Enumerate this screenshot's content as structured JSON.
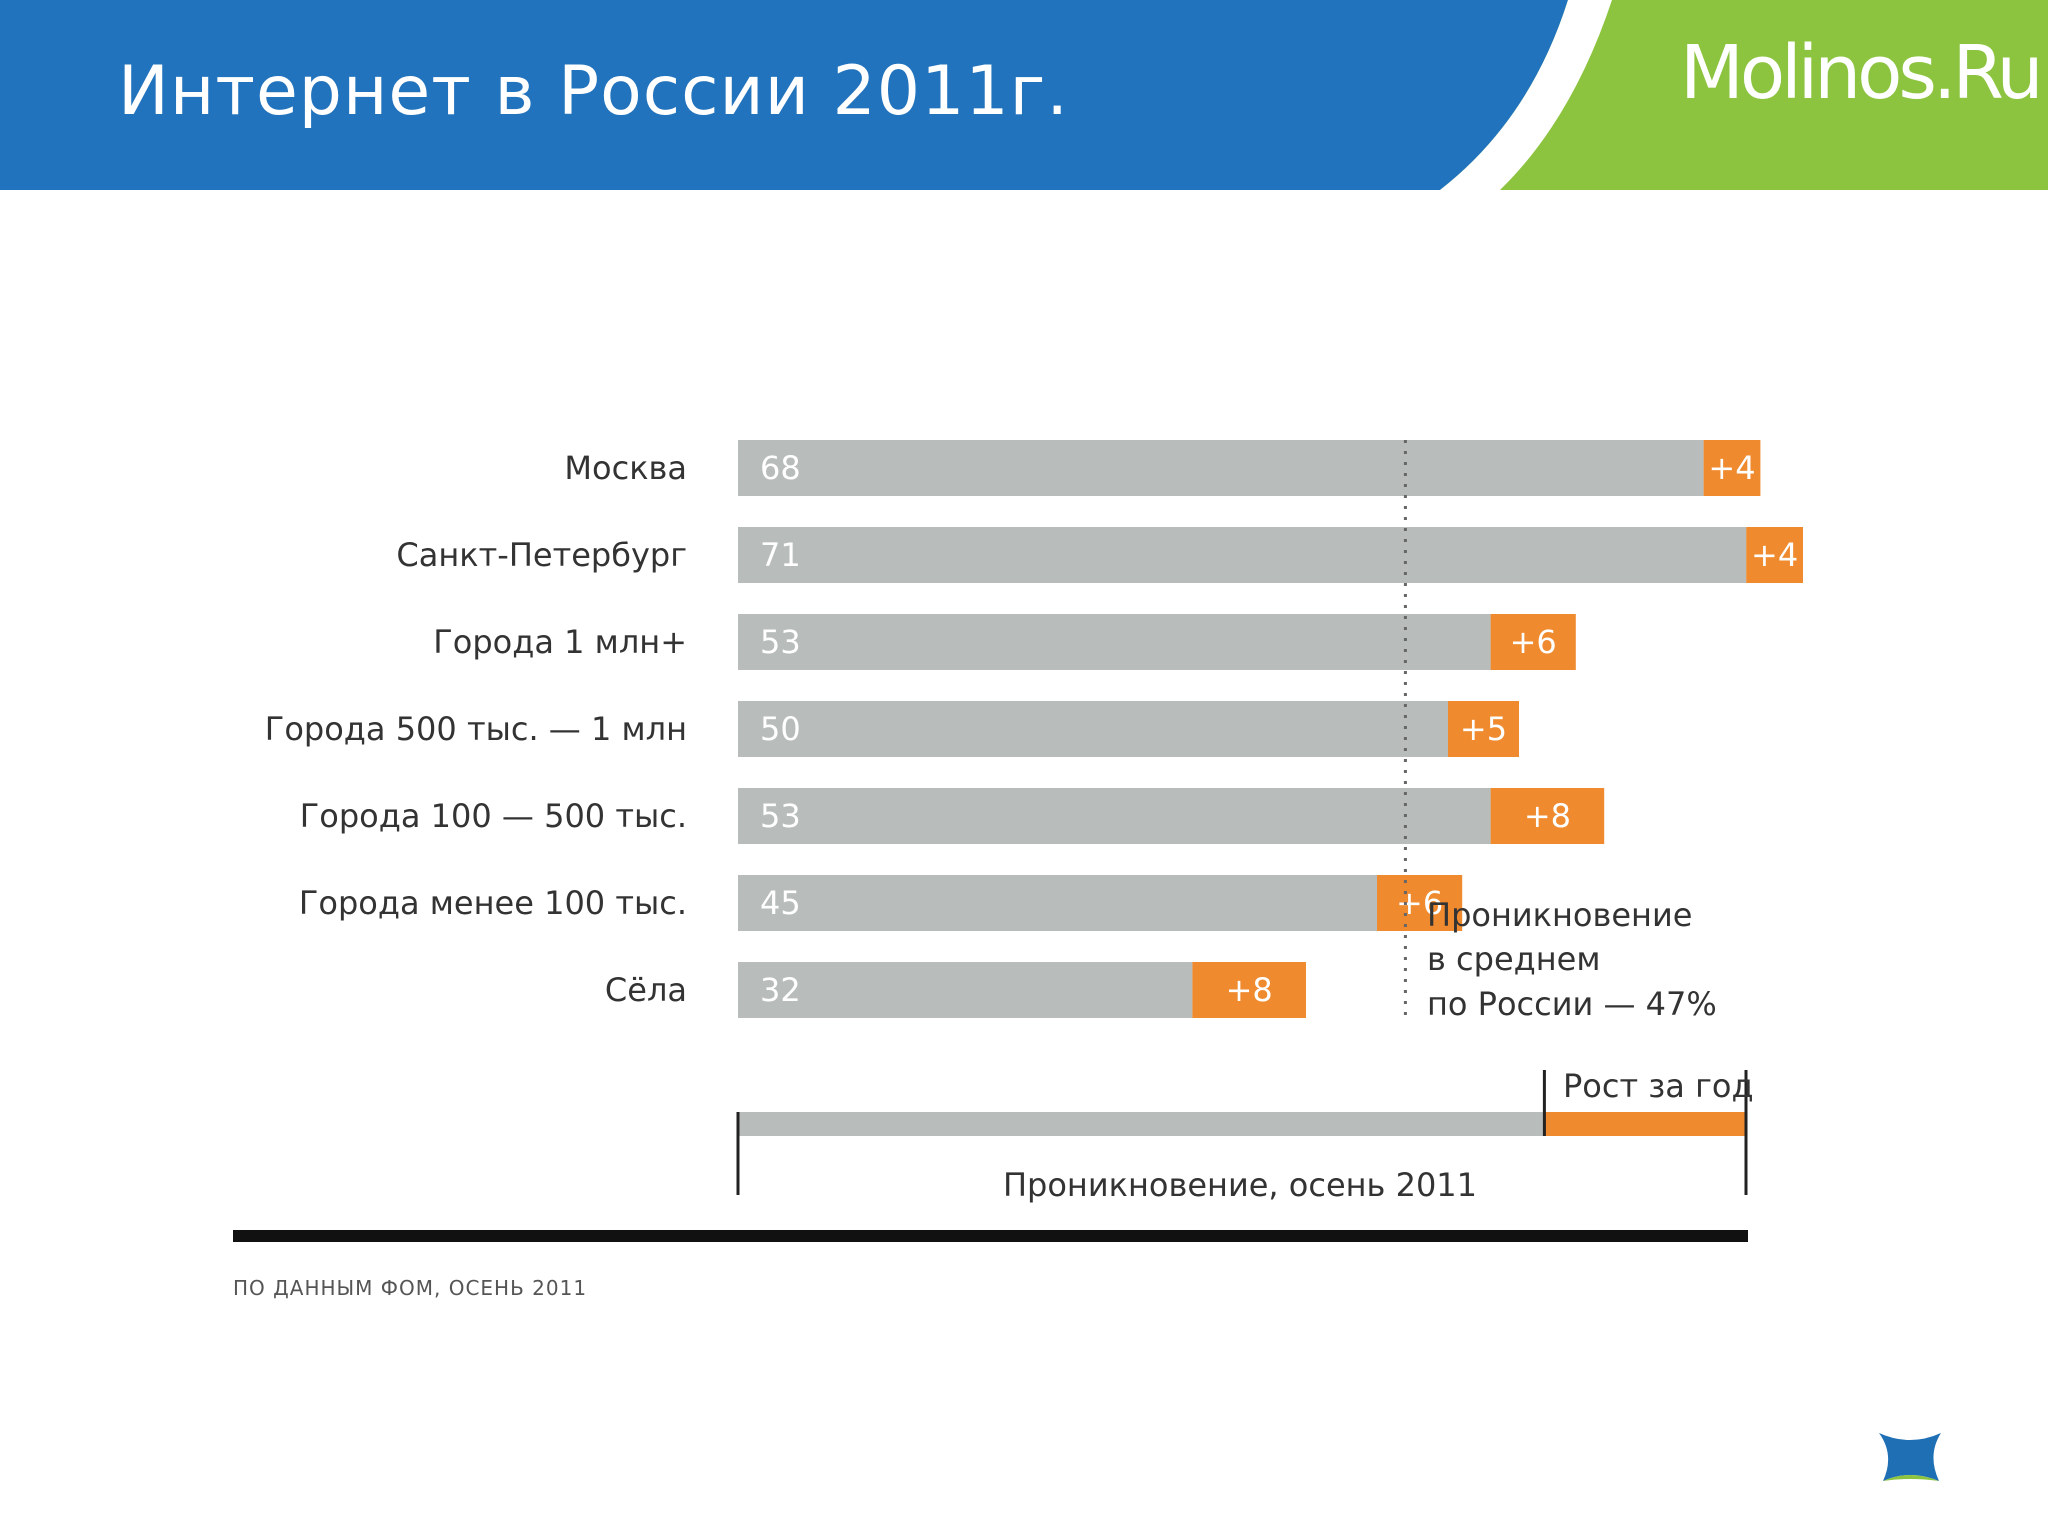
{
  "slide": {
    "title": "Интернет в России 2011г.",
    "brand": "Molinos.Ru"
  },
  "colors": {
    "header_blue": "#2273bd",
    "header_green": "#8cc43f",
    "bar_gray": "#b8bdbc",
    "bar_orange": "#ef8a2e",
    "axis_black": "#111111"
  },
  "chart_data": {
    "type": "bar",
    "orientation": "horizontal",
    "stacked": true,
    "categories": [
      "Москва",
      "Санкт-Петербург",
      "Города 1 млн+",
      "Города 500 тыс. — 1 млн",
      "Города 100 — 500 тыс.",
      "Города менее 100 тыс.",
      "Сёла"
    ],
    "series": [
      {
        "name": "Проникновение, осень 2011",
        "values": [
          68,
          71,
          53,
          50,
          53,
          45,
          32
        ],
        "labels": [
          "68",
          "71",
          "53",
          "50",
          "53",
          "45",
          "32"
        ],
        "color": "#b8bdbc"
      },
      {
        "name": "Рост за год",
        "values": [
          4,
          4,
          6,
          5,
          8,
          6,
          8
        ],
        "labels": [
          "+4",
          "+4",
          "+6",
          "+5",
          "+8",
          "+6",
          "+8"
        ],
        "color": "#ef8a2e"
      }
    ],
    "reference_line": {
      "value": 47,
      "label_lines": [
        "Проникновение",
        "в среднем",
        "по России — 47%"
      ],
      "style": "dotted"
    },
    "legend": {
      "base_label": "Проникновение, осень 2011",
      "growth_label": "Рост за год",
      "placement": "bottom"
    },
    "source": "ПО ДАННЫМ ФОМ, ОСЕНЬ 2011",
    "xlim": [
      0,
      75
    ]
  }
}
